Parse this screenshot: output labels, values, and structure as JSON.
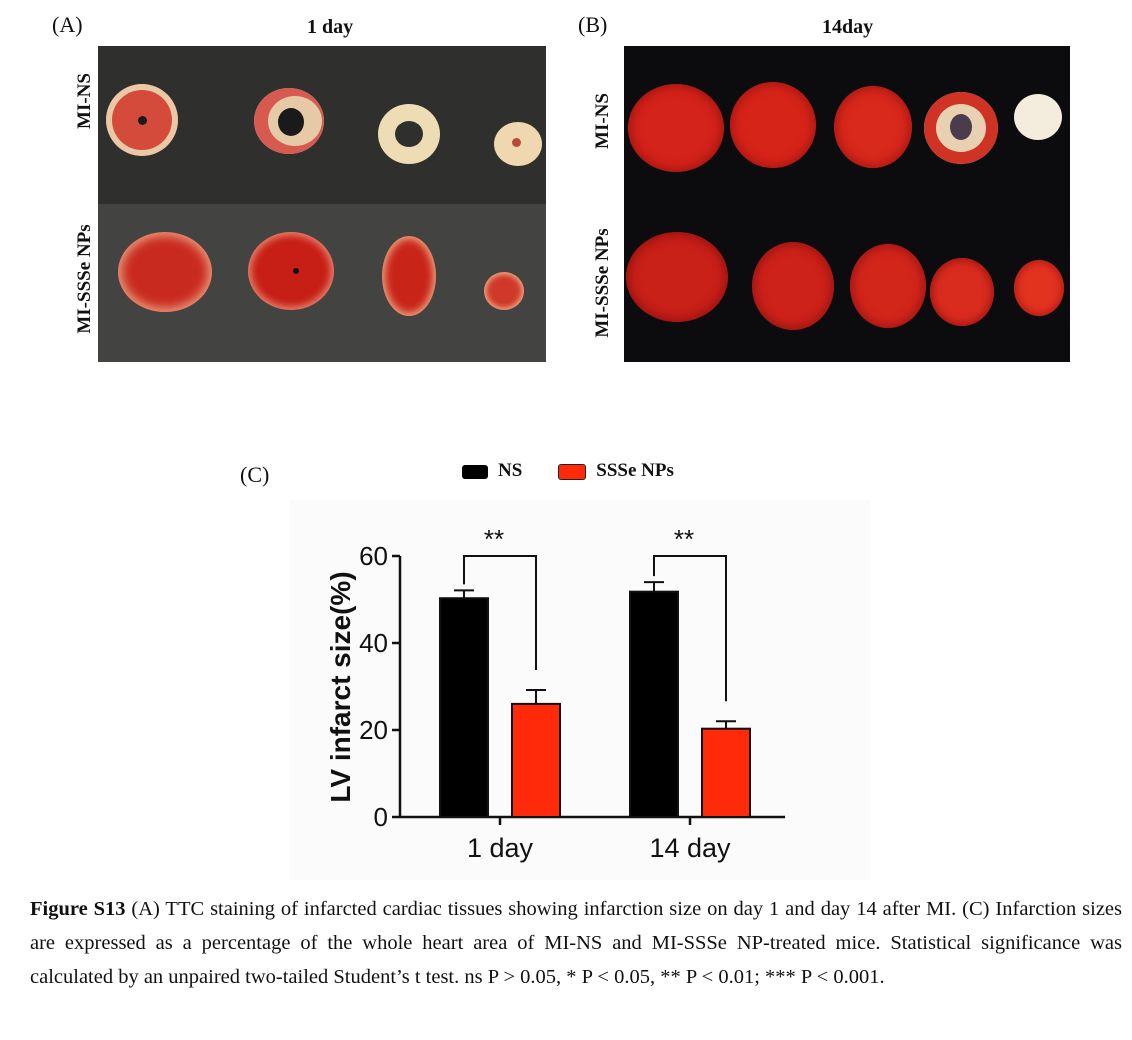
{
  "panel_a": {
    "letter": "(A)",
    "title": "1 day",
    "row_labels": [
      "MI-NS",
      "MI-SSSe NPs"
    ]
  },
  "panel_b": {
    "letter": "(B)",
    "title": "14day",
    "row_labels": [
      "MI-NS",
      "MI-SSSe NPs"
    ]
  },
  "panel_c": {
    "letter": "(C)"
  },
  "colors": {
    "ns": "#000000",
    "ssse": "#ff2a0a",
    "tissue_red": "#c81818",
    "tissue_pale": "#f1dfb8"
  },
  "chart_data": {
    "type": "bar",
    "categories": [
      "1 day",
      "14 day"
    ],
    "series": [
      {
        "name": "NS",
        "values": [
          50.3,
          51.8
        ],
        "errors": [
          1.8,
          2.2
        ]
      },
      {
        "name": "SSSe NPs",
        "values": [
          26.0,
          20.3
        ],
        "errors": [
          3.2,
          1.7
        ]
      }
    ],
    "ylabel": "LV infarct size(%)",
    "xlabel": "",
    "ylim": [
      0,
      60
    ],
    "yticks": [
      0,
      20,
      40,
      60
    ],
    "significance": [
      "**",
      "**"
    ],
    "legend": "top"
  },
  "caption": {
    "label": "Figure S13",
    "text": " (A) TTC staining of infarcted cardiac tissues showing infarction size on day 1 and day 14 after MI. (C) Infarction sizes are expressed as a percentage of the whole heart area of MI-NS and MI-SSSe NP-treated mice. Statistical significance was calculated by an unpaired two-tailed Student’s t test. ns P > 0.05, * P < 0.05, ** P < 0.01; *** P < 0.001."
  }
}
